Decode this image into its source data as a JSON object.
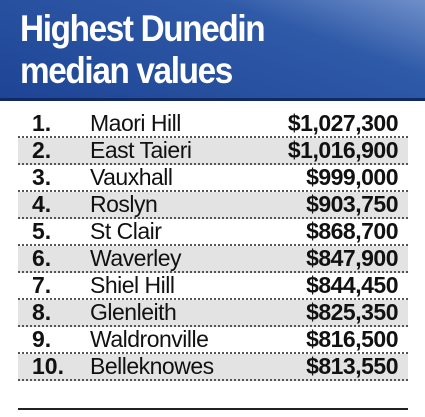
{
  "header": {
    "title_lines": [
      "Highest Dunedin",
      "median values"
    ]
  },
  "table": {
    "rows": [
      [
        "1.",
        "Maori Hill",
        "$1,027,300"
      ],
      [
        "2.",
        "East Taieri",
        "$1,016,900"
      ],
      [
        "3.",
        "Vauxhall",
        "$999,000"
      ],
      [
        "4.",
        "Roslyn",
        "$903,750"
      ],
      [
        "5.",
        "St Clair",
        "$868,700"
      ],
      [
        "6.",
        "Waverley",
        "$847,900"
      ],
      [
        "7.",
        "Shiel Hill",
        "$844,450"
      ],
      [
        "8.",
        "Glenleith",
        "$825,350"
      ],
      [
        "9.",
        "Waldronville",
        "$816,500"
      ],
      [
        "10.",
        "Belleknowes",
        "$813,550"
      ]
    ]
  }
}
